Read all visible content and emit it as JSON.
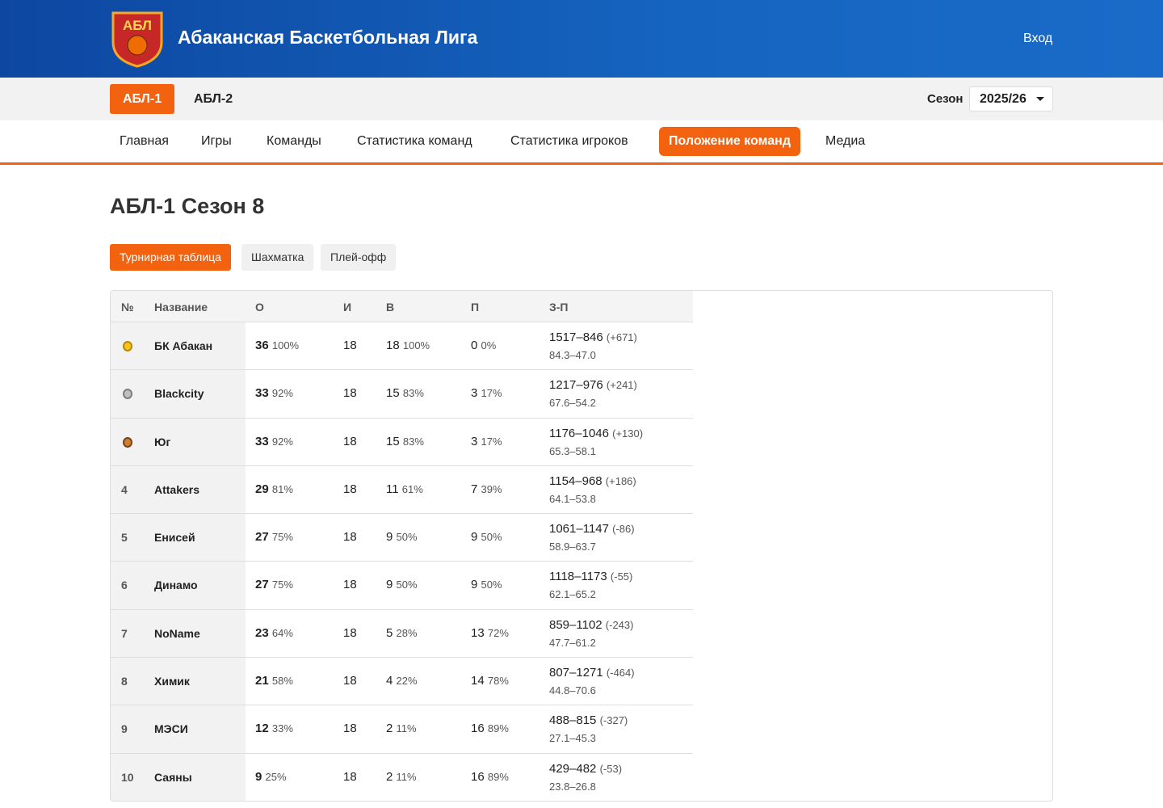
{
  "header": {
    "logo_text": "АБЛ",
    "title": "Абаканская Баскетбольная Лига",
    "login": "Вход"
  },
  "subnav": {
    "leagues": [
      "АБЛ-1",
      "АБЛ-2"
    ],
    "active_league": 0,
    "season_label": "Сезон",
    "season": "2025/26"
  },
  "menu": {
    "items": [
      "Главная",
      "Игры",
      "Команды",
      "Статистика команд",
      "Статистика игроков",
      "Положение команд",
      "Медиа"
    ],
    "active": 5
  },
  "page": {
    "title": "АБЛ-1 Сезон 8",
    "tabs": [
      "Турнирная таблица",
      "Шахматка",
      "Плей-офф"
    ],
    "active_tab": 0
  },
  "table": {
    "headers": [
      "№",
      "Название",
      "О",
      "И",
      "В",
      "П",
      "З-П"
    ],
    "rows": [
      {
        "medal": "gold",
        "name": "БК Абакан",
        "points": "36",
        "points_pct": "100%",
        "games": "18",
        "wins": "18",
        "wins_pct": "100%",
        "losses": "0",
        "losses_pct": "0%",
        "score": "1517–846",
        "diff": "(+671)",
        "avg": "84.3–47.0"
      },
      {
        "medal": "silver",
        "name": "Blackcity",
        "points": "33",
        "points_pct": "92%",
        "games": "18",
        "wins": "15",
        "wins_pct": "83%",
        "losses": "3",
        "losses_pct": "17%",
        "score": "1217–976",
        "diff": "(+241)",
        "avg": "67.6–54.2"
      },
      {
        "medal": "bronze",
        "name": "Юг",
        "points": "33",
        "points_pct": "92%",
        "games": "18",
        "wins": "15",
        "wins_pct": "83%",
        "losses": "3",
        "losses_pct": "17%",
        "score": "1176–1046",
        "diff": "(+130)",
        "avg": "65.3–58.1"
      },
      {
        "rank": "4",
        "name": "Attakers",
        "points": "29",
        "points_pct": "81%",
        "games": "18",
        "wins": "11",
        "wins_pct": "61%",
        "losses": "7",
        "losses_pct": "39%",
        "score": "1154–968",
        "diff": "(+186)",
        "avg": "64.1–53.8"
      },
      {
        "rank": "5",
        "name": "Енисей",
        "points": "27",
        "points_pct": "75%",
        "games": "18",
        "wins": "9",
        "wins_pct": "50%",
        "losses": "9",
        "losses_pct": "50%",
        "score": "1061–1147",
        "diff": "(-86)",
        "avg": "58.9–63.7"
      },
      {
        "rank": "6",
        "name": "Динамо",
        "points": "27",
        "points_pct": "75%",
        "games": "18",
        "wins": "9",
        "wins_pct": "50%",
        "losses": "9",
        "losses_pct": "50%",
        "score": "1118–1173",
        "diff": "(-55)",
        "avg": "62.1–65.2"
      },
      {
        "rank": "7",
        "name": "NoName",
        "points": "23",
        "points_pct": "64%",
        "games": "18",
        "wins": "5",
        "wins_pct": "28%",
        "losses": "13",
        "losses_pct": "72%",
        "score": "859–1102",
        "diff": "(-243)",
        "avg": "47.7–61.2"
      },
      {
        "rank": "8",
        "name": "Химик",
        "points": "21",
        "points_pct": "58%",
        "games": "18",
        "wins": "4",
        "wins_pct": "22%",
        "losses": "14",
        "losses_pct": "78%",
        "score": "807–1271",
        "diff": "(-464)",
        "avg": "44.8–70.6"
      },
      {
        "rank": "9",
        "name": "МЭСИ",
        "points": "12",
        "points_pct": "33%",
        "games": "18",
        "wins": "2",
        "wins_pct": "11%",
        "losses": "16",
        "losses_pct": "89%",
        "score": "488–815",
        "diff": "(-327)",
        "avg": "27.1–45.3"
      },
      {
        "rank": "10",
        "name": "Саяны",
        "points": "9",
        "points_pct": "25%",
        "games": "18",
        "wins": "2",
        "wins_pct": "11%",
        "losses": "16",
        "losses_pct": "89%",
        "score": "429–482",
        "diff": "(-53)",
        "avg": "23.8–26.8"
      }
    ]
  }
}
